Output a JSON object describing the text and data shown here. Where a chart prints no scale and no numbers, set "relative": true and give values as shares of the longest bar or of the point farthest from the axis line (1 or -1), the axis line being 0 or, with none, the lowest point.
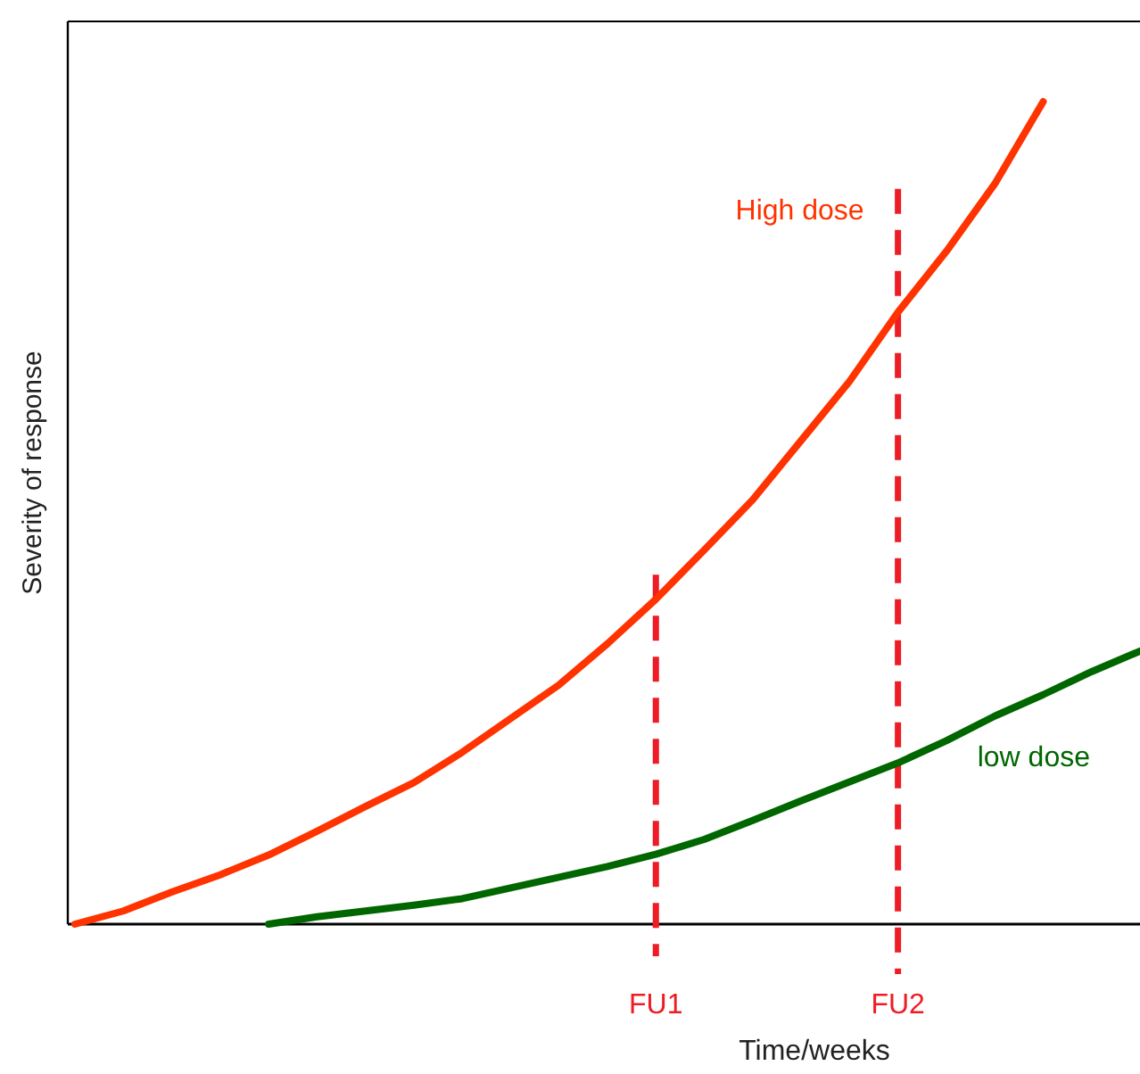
{
  "chart_data": {
    "type": "line",
    "relative": true,
    "xlabel": "Time/weeks",
    "ylabel": "Severity of response",
    "tick_labels": "x",
    "line_style": "solid",
    "categories": [
      null,
      null,
      null,
      null,
      null,
      null,
      null,
      null,
      null,
      null,
      null,
      null,
      "FU1",
      null,
      null,
      null,
      null,
      "FU2",
      null,
      null,
      null,
      null,
      null
    ],
    "series": [
      {
        "name": "High dose",
        "color": "#ff3300",
        "values": [
          0,
          0.016,
          0.039,
          0.06,
          0.084,
          0.113,
          0.143,
          0.172,
          0.209,
          0.25,
          0.291,
          0.341,
          0.395,
          0.455,
          0.516,
          0.588,
          0.66,
          0.744,
          0.818,
          0.9,
          1,
          null,
          null
        ]
      },
      {
        "name": "low dose",
        "color": "#006600",
        "values": [
          null,
          null,
          null,
          null,
          0,
          0.009,
          0.016,
          0.023,
          0.031,
          0.044,
          0.057,
          0.07,
          0.085,
          0.103,
          0.126,
          0.15,
          0.173,
          0.196,
          0.223,
          0.253,
          0.279,
          0.307,
          0.332
        ]
      }
    ],
    "ref_lines": [
      {
        "axis": "x",
        "value": "FU1",
        "color": "#ee1c25",
        "line_style": "dashed"
      },
      {
        "axis": "x",
        "value": "FU2",
        "color": "#ee1c25",
        "line_style": "dashed"
      }
    ]
  }
}
